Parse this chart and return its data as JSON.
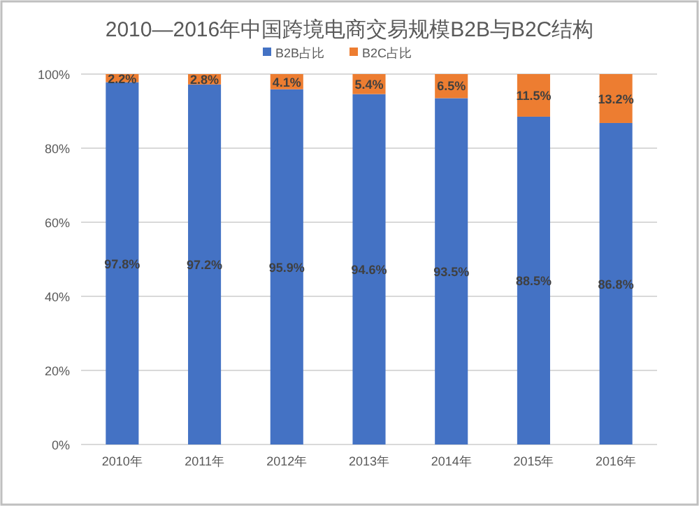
{
  "chart_data": {
    "type": "bar",
    "title": "2010—2016年中国跨境电商交易规模B2B与B2C结构",
    "categories": [
      "2010年",
      "2011年",
      "2012年",
      "2013年",
      "2014年",
      "2015年",
      "2016年"
    ],
    "stacked": true,
    "series": [
      {
        "name": "B2B占比",
        "color": "#4472c4",
        "values": [
          97.8,
          97.2,
          95.9,
          94.6,
          93.5,
          88.5,
          86.8
        ],
        "value_labels": [
          "97.8%",
          "97.2%",
          "95.9%",
          "94.6%",
          "93.5%",
          "88.5%",
          "86.8%"
        ]
      },
      {
        "name": "B2C占比",
        "color": "#ed7d31",
        "values": [
          2.2,
          2.8,
          4.1,
          5.4,
          6.5,
          11.5,
          13.2
        ],
        "value_labels": [
          "2.2%",
          "2.8%",
          "4.1%",
          "5.4%",
          "6.5%",
          "11.5%",
          "13.2%"
        ]
      }
    ],
    "ylim": [
      0,
      100
    ],
    "yticks": [
      {
        "value": 0,
        "label": "0%"
      },
      {
        "value": 20,
        "label": "20%"
      },
      {
        "value": 40,
        "label": "40%"
      },
      {
        "value": 60,
        "label": "60%"
      },
      {
        "value": 80,
        "label": "80%"
      },
      {
        "value": 100,
        "label": "100%"
      }
    ],
    "grid": "y",
    "legend": "top"
  }
}
